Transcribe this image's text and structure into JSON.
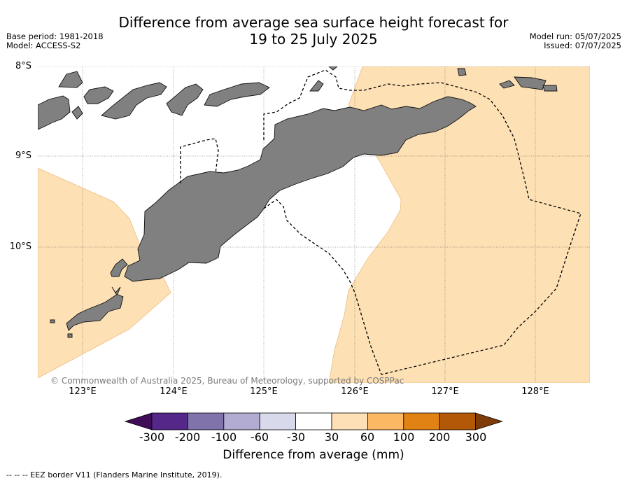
{
  "title": {
    "line1": "Difference from average sea surface height forecast for",
    "line2": "19 to 25 July 2025"
  },
  "meta_left": {
    "base_period": "Base period: 1981-2018",
    "model": "Model: ACCESS-S2"
  },
  "meta_right": {
    "model_run": "Model run: 05/07/2025",
    "issued": "Issued: 07/07/2025"
  },
  "map": {
    "lat_ticks": [
      "8°S",
      "9°S",
      "10°S"
    ],
    "lon_ticks": [
      "123°E",
      "124°E",
      "125°E",
      "126°E",
      "127°E",
      "128°E"
    ],
    "credit": "© Commonwealth of Australia 2025, Bureau of Meteorology, supported by COSPPac",
    "colors": {
      "land": "#808080",
      "anomaly_30_60": "#fde0b3",
      "ocean_neutral": "#ffffff"
    }
  },
  "colorbar": {
    "title": "Difference from average (mm)",
    "labels": [
      "-300",
      "-200",
      "-100",
      "-60",
      "-30",
      "30",
      "60",
      "100",
      "200",
      "300"
    ],
    "colors": [
      "#3f0c57",
      "#542788",
      "#8073ac",
      "#b2abd2",
      "#d8daeb",
      "#ffffff",
      "#fee0b6",
      "#fdb863",
      "#e08214",
      "#b35806",
      "#7f3b08"
    ]
  },
  "footnote": "--  --  -- EEZ border V11 (Flanders Marine Institute, 2019)."
}
